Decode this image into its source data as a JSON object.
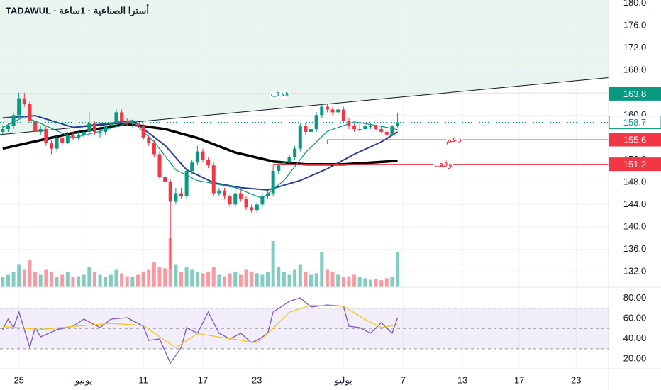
{
  "chart_data": [
    {
      "type": "candlestick",
      "title": "TADAWUL · أسترا الصناعية · 1ساعة",
      "xlim": [
        -0.5,
        112
      ],
      "xticks": [
        {
          "value": 3,
          "label": "25"
        },
        {
          "value": 15,
          "label": "يونيو"
        },
        {
          "value": 26,
          "label": "11"
        },
        {
          "value": 37,
          "label": "17"
        },
        {
          "value": 47,
          "label": "23"
        },
        {
          "value": 63,
          "label": "يوليو"
        },
        {
          "value": 74,
          "label": "7"
        },
        {
          "value": 85,
          "label": "13"
        },
        {
          "value": 95.5,
          "label": "17"
        },
        {
          "value": 106,
          "label": "23"
        }
      ],
      "ylim": [
        129.2,
        180.6
      ],
      "yticks": [
        {
          "value": 132,
          "label": "132.0"
        },
        {
          "value": 136,
          "label": "136.0"
        },
        {
          "value": 140,
          "label": "140.0"
        },
        {
          "value": 144,
          "label": "144.0"
        },
        {
          "value": 148,
          "label": "148.0"
        },
        {
          "value": 152,
          "label": "152.0"
        },
        {
          "value": 156,
          "label": "156.0"
        },
        {
          "value": 160,
          "label": "160.0"
        },
        {
          "value": 164,
          "label": "164.0"
        },
        {
          "value": 168,
          "label": "168.0"
        },
        {
          "value": 172,
          "label": "172.0"
        },
        {
          "value": 176,
          "label": "176.0"
        },
        {
          "value": 180,
          "label": "180.0"
        }
      ],
      "grid": true,
      "up_color": "#089981",
      "down_color": "#f23645",
      "candles": [
        [
          157,
          158.2,
          156.5,
          157.5
        ],
        [
          157.5,
          158.5,
          157,
          158
        ],
        [
          158,
          160.5,
          157.5,
          160
        ],
        [
          160,
          164,
          159.5,
          163
        ],
        [
          163,
          164,
          161.5,
          162
        ],
        [
          162,
          162.5,
          158.5,
          159
        ],
        [
          159,
          159.5,
          156,
          157
        ],
        [
          157,
          158,
          156.5,
          157.5
        ],
        [
          157.5,
          158,
          154.5,
          155
        ],
        [
          155,
          155.5,
          153,
          154
        ],
        [
          154,
          156.5,
          153.5,
          156
        ],
        [
          156,
          156.5,
          154.5,
          155
        ],
        [
          155,
          157,
          154.8,
          156.5
        ],
        [
          156.5,
          157,
          155.5,
          156
        ],
        [
          156,
          157,
          155.5,
          156.5
        ],
        [
          156.5,
          157.5,
          156,
          157
        ],
        [
          157,
          160.5,
          156.5,
          158.5
        ],
        [
          158.5,
          159,
          156.5,
          157
        ],
        [
          157,
          157.5,
          156,
          157
        ],
        [
          157,
          158.5,
          156.5,
          158
        ],
        [
          158,
          159,
          157.5,
          158.5
        ],
        [
          158.5,
          161,
          158,
          160.5
        ],
        [
          160.5,
          161,
          158.5,
          159
        ],
        [
          159,
          159.5,
          158,
          158.5
        ],
        [
          158.5,
          159.2,
          157.8,
          158.5
        ],
        [
          158.5,
          159,
          157.5,
          158
        ],
        [
          158,
          158.5,
          155.5,
          156
        ],
        [
          156,
          156.5,
          154.5,
          155
        ],
        [
          155,
          155.5,
          152.5,
          153
        ],
        [
          153,
          153.5,
          148.5,
          149
        ],
        [
          149,
          149.5,
          147.5,
          148
        ],
        [
          148,
          148.5,
          132.5,
          144.5
        ],
        [
          144.5,
          147,
          144,
          146
        ],
        [
          146,
          147,
          145,
          145.5
        ],
        [
          145.5,
          150.5,
          145,
          150
        ],
        [
          150,
          152,
          149.5,
          151.5
        ],
        [
          151.5,
          154.5,
          151,
          153.5
        ],
        [
          153.5,
          154,
          151.5,
          152
        ],
        [
          152,
          152.5,
          150.5,
          151
        ],
        [
          151,
          151.5,
          145.5,
          146
        ],
        [
          146,
          147,
          145.5,
          146.5
        ],
        [
          146.5,
          147,
          145,
          145.5
        ],
        [
          145.5,
          146,
          143.5,
          144
        ],
        [
          144,
          146.5,
          143.5,
          146
        ],
        [
          146,
          146.5,
          144.5,
          145
        ],
        [
          145,
          145.5,
          143,
          143.5
        ],
        [
          143.5,
          144,
          142.5,
          143
        ],
        [
          143,
          144.5,
          142.5,
          144
        ],
        [
          144,
          146,
          143.5,
          145.5
        ],
        [
          145.5,
          146.5,
          145,
          146
        ],
        [
          146,
          150.5,
          145.5,
          150
        ],
        [
          150,
          151.5,
          149.5,
          151
        ],
        [
          151,
          152,
          150.5,
          151.5
        ],
        [
          151.5,
          153,
          151,
          152.5
        ],
        [
          152.5,
          154.5,
          152,
          154
        ],
        [
          154,
          158.5,
          153.5,
          158
        ],
        [
          158,
          158.5,
          156.5,
          157
        ],
        [
          157,
          158,
          156.5,
          157.5
        ],
        [
          157.5,
          160.5,
          157,
          160
        ],
        [
          160,
          162,
          159.5,
          161.5
        ],
        [
          161.5,
          162,
          160.5,
          161
        ],
        [
          161,
          161.5,
          160,
          160.5
        ],
        [
          160.5,
          161.5,
          160,
          161
        ],
        [
          161,
          161.5,
          158.5,
          159
        ],
        [
          159,
          159.5,
          157.5,
          158
        ],
        [
          158,
          158.5,
          157,
          157.5
        ],
        [
          157.5,
          158.5,
          157,
          157.5
        ],
        [
          157.5,
          158.5,
          157.2,
          158
        ],
        [
          158,
          158.5,
          157.5,
          158
        ],
        [
          158,
          158.3,
          157.2,
          157.5
        ],
        [
          157.5,
          158,
          156.8,
          157
        ],
        [
          157,
          157.5,
          156,
          156.5
        ],
        [
          156.5,
          158.2,
          156.2,
          158
        ],
        [
          158,
          160.4,
          157.8,
          158.7
        ]
      ],
      "volume": {
        "lim": [
          0,
          100
        ],
        "values": [
          20,
          25,
          30,
          45,
          35,
          55,
          30,
          25,
          35,
          30,
          20,
          25,
          30,
          20,
          22,
          25,
          40,
          30,
          25,
          20,
          25,
          35,
          28,
          22,
          20,
          25,
          30,
          35,
          50,
          40,
          38,
          100,
          45,
          30,
          40,
          35,
          30,
          28,
          30,
          40,
          25,
          22,
          28,
          30,
          25,
          35,
          30,
          28,
          25,
          30,
          93,
          40,
          30,
          25,
          35,
          45,
          30,
          25,
          28,
          71,
          35,
          30,
          25,
          20,
          22,
          25,
          20,
          18,
          15,
          16,
          14,
          18,
          20,
          70
        ]
      },
      "lines": [
        {
          "color": "#000000",
          "width": 3.5,
          "x": [
            0,
            13,
            23,
            30,
            36,
            43,
            50,
            56,
            63,
            73
          ],
          "values": [
            154.0,
            156.8,
            158.4,
            157.5,
            155.9,
            153.3,
            151.7,
            151.2,
            151.2,
            151.8
          ]
        },
        {
          "color": "#2a3f9a",
          "width": 2,
          "x": [
            0,
            6,
            13,
            24,
            30,
            34,
            39,
            44,
            49,
            55,
            60,
            65,
            70,
            73
          ],
          "values": [
            159.5,
            159.9,
            157.8,
            159,
            154.6,
            150.2,
            147.9,
            147,
            146.6,
            148.3,
            150.4,
            153,
            155.2,
            157
          ]
        },
        {
          "color": "#089981",
          "width": 1.2,
          "x": [
            0,
            4,
            7,
            13,
            18,
            24,
            28,
            32,
            36,
            43,
            48,
            52,
            56,
            60,
            65,
            70,
            73
          ],
          "values": [
            157.8,
            159.7,
            158.5,
            155.9,
            157.1,
            158.8,
            155.2,
            150.2,
            148.3,
            147,
            145.1,
            148.3,
            153.3,
            157.1,
            158.8,
            158,
            157.4
          ]
        }
      ],
      "trendline": {
        "color": "#131722",
        "fill": "#e8f5ee",
        "x": [
          -0.5,
          112
        ],
        "values": [
          156.5,
          166.7
        ]
      },
      "levels": [
        {
          "name": "هدف",
          "value": 163.8,
          "color": "#089981",
          "from": -0.5
        },
        {
          "name": "دعم",
          "value": 155.6,
          "color": "#f23645",
          "from": 60
        },
        {
          "name": "وقف",
          "value": 151.2,
          "color": "#f23645",
          "from": 50
        }
      ],
      "last_price": {
        "value": 158.7,
        "color": "#089981"
      }
    },
    {
      "type": "rsi",
      "xlim": [
        -0.5,
        112
      ],
      "ylim": [
        10.3,
        90.8
      ],
      "yticks": [
        {
          "value": 20,
          "label": "20.00"
        },
        {
          "value": 40,
          "label": "40.00"
        },
        {
          "value": 60,
          "label": "60.00"
        },
        {
          "value": 80,
          "label": "80.00"
        }
      ],
      "bands": [
        30,
        50,
        70
      ],
      "band_color": "#7e57c2",
      "series": [
        {
          "color": "#7e57c2",
          "x": [
            0,
            1,
            2,
            3,
            5,
            6,
            7,
            10,
            13,
            15,
            18,
            20,
            23,
            26,
            27,
            29,
            30,
            31,
            33,
            34,
            36,
            38,
            40,
            42,
            44,
            46,
            47,
            49,
            50,
            52,
            53,
            55,
            57,
            60,
            63,
            64,
            66,
            68,
            70,
            72,
            73
          ],
          "values": [
            48.8,
            59.3,
            50.9,
            66.3,
            31.3,
            50.9,
            41.8,
            48.8,
            52.3,
            59.3,
            50.9,
            59.3,
            60.7,
            52.3,
            38.3,
            39.7,
            27.8,
            15.9,
            31.3,
            50.9,
            45.3,
            66.3,
            45.3,
            39.7,
            45.3,
            36.2,
            38.3,
            45.3,
            66.3,
            73.3,
            76.8,
            80.3,
            71.2,
            73.3,
            71.9,
            52.3,
            50.9,
            45.3,
            55.8,
            45.3,
            60.7
          ]
        },
        {
          "color": "#f7c325",
          "x": [
            0,
            7,
            13,
            20,
            26,
            32,
            36,
            42,
            47,
            49,
            53,
            57,
            63,
            67,
            70,
            73
          ],
          "values": [
            52,
            49,
            52,
            55,
            53,
            31,
            45,
            40,
            36,
            45,
            66,
            73,
            72,
            59,
            51,
            54
          ]
        }
      ]
    }
  ]
}
